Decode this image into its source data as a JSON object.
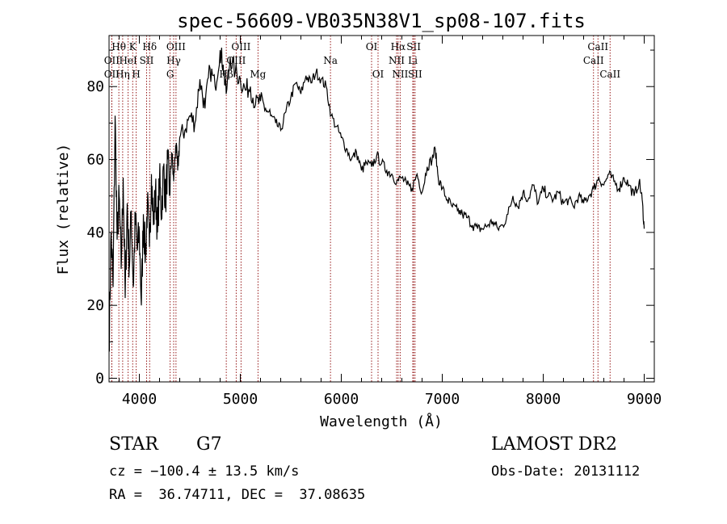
{
  "chart_data": {
    "type": "line",
    "title": "spec-56609-VB035N38V1_sp08-107.fits",
    "xlabel": "Wavelength (Å)",
    "ylabel": "Flux (relative)",
    "xlim": [
      3700,
      9100
    ],
    "ylim": [
      -1,
      94
    ],
    "xticks": [
      4000,
      5000,
      6000,
      7000,
      8000,
      9000
    ],
    "yticks": [
      0,
      20,
      40,
      60,
      80
    ],
    "grid": false,
    "series": [
      {
        "x": [
          3700,
          3720,
          3740,
          3760,
          3780,
          3800,
          3820,
          3840,
          3860,
          3880,
          3900,
          3920,
          3940,
          3960,
          3980,
          4000,
          4020,
          4040,
          4060,
          4080,
          4100,
          4120,
          4140,
          4160,
          4180,
          4200,
          4220,
          4240,
          4260,
          4280,
          4300,
          4320,
          4340,
          4360,
          4380,
          4400,
          4450,
          4500,
          4550,
          4600,
          4650,
          4700,
          4750,
          4800,
          4830,
          4860,
          4900,
          4950,
          5000,
          5050,
          5100,
          5150,
          5200,
          5250,
          5300,
          5350,
          5400,
          5450,
          5500,
          5550,
          5600,
          5650,
          5700,
          5750,
          5800,
          5850,
          5900,
          5950,
          6000,
          6050,
          6100,
          6150,
          6200,
          6250,
          6300,
          6350,
          6400,
          6450,
          6500,
          6550,
          6600,
          6650,
          6700,
          6750,
          6800,
          6850,
          6900,
          6930,
          6960,
          7000,
          7050,
          7100,
          7150,
          7200,
          7250,
          7300,
          7350,
          7400,
          7450,
          7500,
          7550,
          7600,
          7650,
          7700,
          7750,
          7800,
          7850,
          7900,
          7950,
          8000,
          8050,
          8100,
          8150,
          8200,
          8250,
          8300,
          8350,
          8400,
          8450,
          8500,
          8550,
          8600,
          8650,
          8700,
          8750,
          8800,
          8850,
          8900,
          8950,
          8980,
          9000
        ],
        "values": [
          8,
          40,
          25,
          72,
          38,
          50,
          30,
          55,
          22,
          48,
          30,
          46,
          25,
          44,
          35,
          40,
          20,
          45,
          33,
          48,
          36,
          56,
          42,
          52,
          40,
          55,
          45,
          58,
          48,
          60,
          50,
          62,
          54,
          64,
          57,
          66,
          68,
          72,
          70,
          82,
          74,
          85,
          80,
          90,
          86,
          78,
          88,
          84,
          82,
          79,
          80,
          75,
          76,
          74,
          72,
          70,
          68,
          73,
          77,
          81,
          78,
          83,
          81,
          84,
          82,
          80,
          72,
          69,
          66,
          63,
          60,
          62,
          57,
          59,
          58,
          61,
          59,
          57,
          56,
          54,
          55,
          53,
          52,
          56,
          51,
          58,
          60,
          63,
          55,
          52,
          49,
          47,
          46,
          45,
          44,
          42,
          41,
          41,
          42,
          43,
          41,
          42,
          45,
          50,
          47,
          51,
          49,
          53,
          48,
          52,
          50,
          49,
          51,
          48,
          49,
          47,
          50,
          48,
          50,
          52,
          55,
          53,
          56,
          54,
          52,
          55,
          53,
          50,
          54,
          49,
          41
        ],
        "color": "#000000"
      }
    ],
    "line_markers": [
      {
        "label": "Hθ",
        "x": 3797,
        "row": 1
      },
      {
        "label": "K",
        "x": 3934,
        "row": 1
      },
      {
        "label": "Hδ",
        "x": 4102,
        "row": 1
      },
      {
        "label": "OIII",
        "x": 4363,
        "row": 1
      },
      {
        "label": "OIII",
        "x": 5007,
        "row": 1
      },
      {
        "label": "OI",
        "x": 6300,
        "row": 1
      },
      {
        "label": "Hα",
        "x": 6563,
        "row": 1
      },
      {
        "label": "SII",
        "x": 6717,
        "row": 1
      },
      {
        "label": "CaII",
        "x": 8542,
        "row": 1
      },
      {
        "label": "OII",
        "x": 3727,
        "row": 2
      },
      {
        "label": "HeI",
        "x": 3889,
        "row": 2
      },
      {
        "label": "SII",
        "x": 4072,
        "row": 2
      },
      {
        "label": "Hγ",
        "x": 4340,
        "row": 2
      },
      {
        "label": "OIII",
        "x": 4959,
        "row": 2
      },
      {
        "label": "Na",
        "x": 5893,
        "row": 2
      },
      {
        "label": "NII",
        "x": 6548,
        "row": 2
      },
      {
        "label": "Li",
        "x": 6708,
        "row": 2
      },
      {
        "label": "CaII",
        "x": 8498,
        "row": 2
      },
      {
        "label": "OII",
        "x": 3727,
        "row": 3
      },
      {
        "label": "Hη",
        "x": 3835,
        "row": 3
      },
      {
        "label": "H",
        "x": 3969,
        "row": 3
      },
      {
        "label": "G",
        "x": 4305,
        "row": 3
      },
      {
        "label": "Hβ",
        "x": 4861,
        "row": 3
      },
      {
        "label": "Mg",
        "x": 5175,
        "row": 3
      },
      {
        "label": "OI",
        "x": 6364,
        "row": 3
      },
      {
        "label": "NII",
        "x": 6583,
        "row": 3
      },
      {
        "label": "SII",
        "x": 6731,
        "row": 3
      },
      {
        "label": "CaII",
        "x": 8662,
        "row": 3
      }
    ]
  },
  "info": {
    "class": "STAR",
    "subclass": "G7",
    "survey": "LAMOST DR2",
    "cz": "cz = −100.4 ± 13.5 km/s",
    "obs_date": "Obs-Date: 20131112",
    "radec": "RA =  36.74711, DEC =  37.08635"
  }
}
